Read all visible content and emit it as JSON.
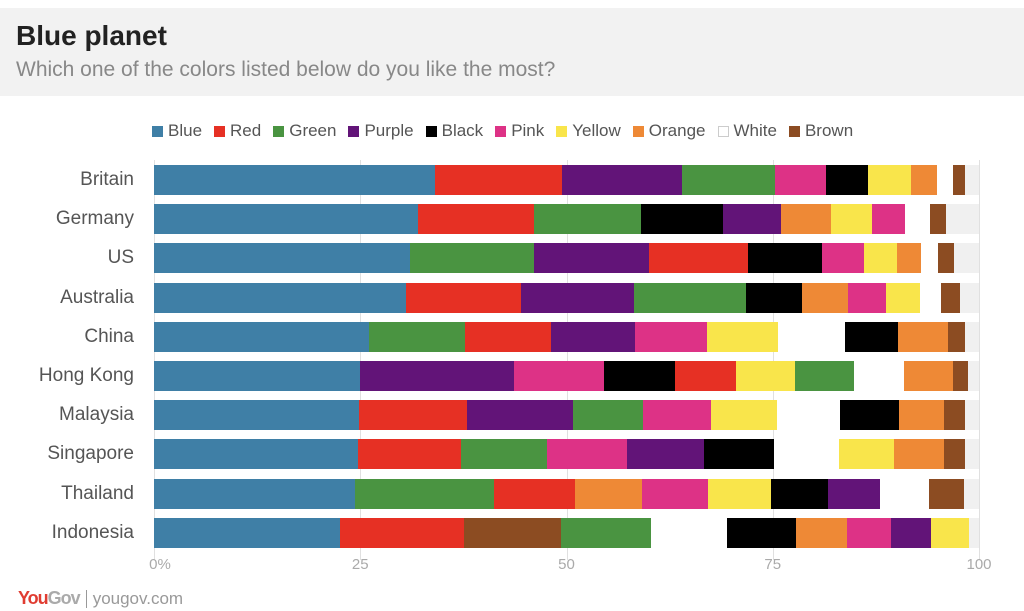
{
  "header": {
    "title": "Blue planet",
    "subtitle": "Which one of the colors listed below do you like the most?"
  },
  "legend": [
    {
      "label": "Blue",
      "color": "#3f7fa6"
    },
    {
      "label": "Red",
      "color": "#e63024"
    },
    {
      "label": "Green",
      "color": "#4a9441"
    },
    {
      "label": "Purple",
      "color": "#621478"
    },
    {
      "label": "Black",
      "color": "#000000"
    },
    {
      "label": "Pink",
      "color": "#dd3286"
    },
    {
      "label": "Yellow",
      "color": "#f9e54b"
    },
    {
      "label": "Orange",
      "color": "#ee8936"
    },
    {
      "label": "White",
      "color": "#ffffff"
    },
    {
      "label": "Brown",
      "color": "#8c4c22"
    }
  ],
  "axis": {
    "ticks": [
      "0%",
      "25",
      "50",
      "75",
      "100"
    ]
  },
  "footer": {
    "brand_you": "You",
    "brand_gov": "Gov",
    "url": "yougov.com"
  },
  "chart_data": {
    "type": "bar",
    "orientation": "horizontal",
    "stacked": true,
    "title": "Blue planet",
    "subtitle": "Which one of the colors listed below do you like the most?",
    "xlabel": "",
    "ylabel": "",
    "xlim": [
      0,
      100
    ],
    "x_ticks": [
      "0%",
      "25",
      "50",
      "75",
      "100"
    ],
    "legend_position": "top",
    "grid": true,
    "categories": [
      "Britain",
      "Germany",
      "US",
      "Australia",
      "China",
      "Hong Kong",
      "Malaysia",
      "Singapore",
      "Thailand",
      "Indonesia"
    ],
    "rows": [
      {
        "country": "Britain",
        "segments": [
          [
            "Blue",
            34
          ],
          [
            "Red",
            15.5
          ],
          [
            "Purple",
            14.5
          ],
          [
            "Green",
            11.3
          ],
          [
            "Pink",
            6.2
          ],
          [
            "Black",
            5.1
          ],
          [
            "Yellow",
            5.2
          ],
          [
            "Orange",
            3.1
          ],
          [
            "White",
            1.9
          ],
          [
            "Brown",
            1.5
          ]
        ]
      },
      {
        "country": "Germany",
        "segments": [
          [
            "Blue",
            32
          ],
          [
            "Red",
            14
          ],
          [
            "Green",
            13
          ],
          [
            "Black",
            10
          ],
          [
            "Purple",
            7
          ],
          [
            "Orange",
            6
          ],
          [
            "Yellow",
            5
          ],
          [
            "Pink",
            4
          ],
          [
            "White",
            3
          ],
          [
            "Brown",
            2
          ]
        ]
      },
      {
        "country": "US",
        "segments": [
          [
            "Blue",
            31
          ],
          [
            "Green",
            15
          ],
          [
            "Purple",
            14
          ],
          [
            "Red",
            12
          ],
          [
            "Black",
            9
          ],
          [
            "Pink",
            5
          ],
          [
            "Yellow",
            4
          ],
          [
            "Orange",
            3
          ],
          [
            "White",
            2
          ],
          [
            "Brown",
            2
          ]
        ]
      },
      {
        "country": "Australia",
        "segments": [
          [
            "Blue",
            30.5
          ],
          [
            "Red",
            14
          ],
          [
            "Purple",
            13.7
          ],
          [
            "Green",
            13.5
          ],
          [
            "Black",
            6.8
          ],
          [
            "Orange",
            5.6
          ],
          [
            "Pink",
            4.6
          ],
          [
            "Yellow",
            4.1
          ],
          [
            "White",
            2.6
          ],
          [
            "Brown",
            2.3
          ]
        ]
      },
      {
        "country": "China",
        "segments": [
          [
            "Blue",
            26
          ],
          [
            "Green",
            11.7
          ],
          [
            "Red",
            10.4
          ],
          [
            "Purple",
            10.2
          ],
          [
            "Pink",
            8.7
          ],
          [
            "Yellow",
            8.6
          ],
          [
            "White",
            8.2
          ],
          [
            "Black",
            6.4
          ],
          [
            "Orange",
            6.0
          ],
          [
            "Brown",
            2.1
          ]
        ]
      },
      {
        "country": "Hong Kong",
        "segments": [
          [
            "Blue",
            25
          ],
          [
            "Purple",
            18.6
          ],
          [
            "Pink",
            11
          ],
          [
            "Black",
            8.5
          ],
          [
            "Red",
            7.4
          ],
          [
            "Yellow",
            7.2
          ],
          [
            "Green",
            7.1
          ],
          [
            "White",
            6.1
          ],
          [
            "Orange",
            5.9
          ],
          [
            "Brown",
            1.9
          ]
        ]
      },
      {
        "country": "Malaysia",
        "segments": [
          [
            "Blue",
            24.8
          ],
          [
            "Red",
            13.1
          ],
          [
            "Purple",
            12.9
          ],
          [
            "Green",
            8.5
          ],
          [
            "Pink",
            8.2
          ],
          [
            "Yellow",
            8.0
          ],
          [
            "White",
            7.7
          ],
          [
            "Black",
            7.1
          ],
          [
            "Orange",
            5.5
          ],
          [
            "Brown",
            2.5
          ]
        ]
      },
      {
        "country": "Singapore",
        "segments": [
          [
            "Blue",
            24.7
          ],
          [
            "Red",
            12.5
          ],
          [
            "Green",
            10.4
          ],
          [
            "Pink",
            9.7
          ],
          [
            "Purple",
            9.4
          ],
          [
            "Black",
            8.5
          ],
          [
            "White",
            7.8
          ],
          [
            "Yellow",
            6.7
          ],
          [
            "Orange",
            6.1
          ],
          [
            "Brown",
            2.5
          ]
        ]
      },
      {
        "country": "Thailand",
        "segments": [
          [
            "Blue",
            24.4
          ],
          [
            "Green",
            16.8
          ],
          [
            "Red",
            9.8
          ],
          [
            "Orange",
            8.2
          ],
          [
            "Pink",
            8.0
          ],
          [
            "Yellow",
            7.6
          ],
          [
            "Black",
            6.9
          ],
          [
            "Purple",
            6.3
          ],
          [
            "White",
            5.9
          ],
          [
            "Brown",
            4.3
          ]
        ]
      },
      {
        "country": "Indonesia",
        "segments": [
          [
            "Blue",
            22.6
          ],
          [
            "Red",
            15
          ],
          [
            "Brown",
            11.7
          ],
          [
            "Green",
            11
          ],
          [
            "White",
            9.2
          ],
          [
            "Black",
            8.3
          ],
          [
            "Orange",
            6.2
          ],
          [
            "Pink",
            5.3
          ],
          [
            "Purple",
            4.9
          ],
          [
            "Yellow",
            4.6
          ]
        ]
      }
    ]
  }
}
